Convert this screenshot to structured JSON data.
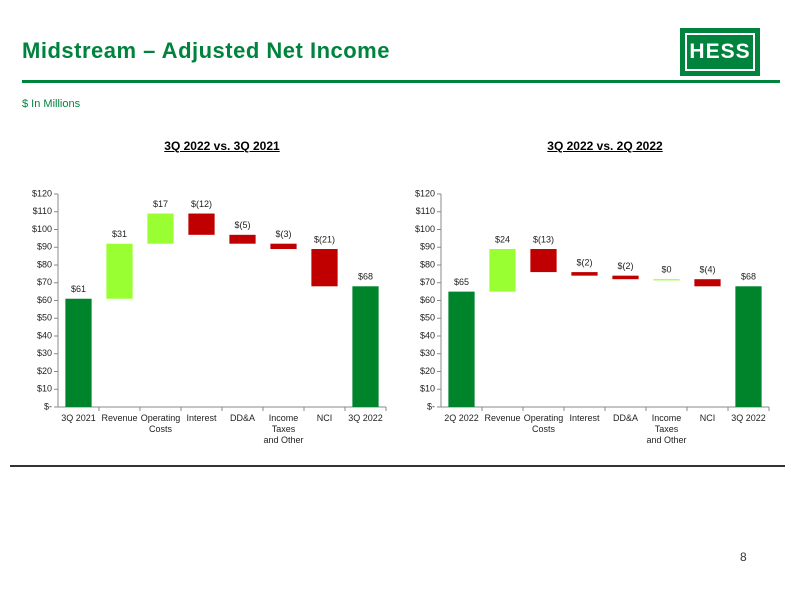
{
  "header": {
    "title": "Midstream – Adjusted Net Income",
    "subtitle": "$ In Millions",
    "logo": "HESS",
    "page_number": "8"
  },
  "chart_data": [
    {
      "type": "waterfall",
      "title": "3Q 2022 vs. 3Q 2021",
      "categories": [
        "3Q 2021",
        "Revenue",
        "Operating Costs",
        "Interest",
        "DD&A",
        "Income Taxes and Other",
        "NCI",
        "3Q 2022"
      ],
      "values": [
        61,
        31,
        17,
        -12,
        -5,
        -3,
        -21,
        68
      ],
      "value_labels": [
        "$61",
        "$31",
        "$17",
        "$(12)",
        "$(5)",
        "$(3)",
        "$(21)",
        "$68"
      ],
      "measure": [
        "total",
        "relative",
        "relative",
        "relative",
        "relative",
        "relative",
        "relative",
        "total"
      ],
      "colors": {
        "total": "#00842b",
        "increase": "#99ff33",
        "decrease": "#c00000"
      },
      "ylim": [
        0,
        120
      ],
      "yticks": [
        {
          "value": 0,
          "label": "$-"
        },
        {
          "value": 10,
          "label": "$10"
        },
        {
          "value": 20,
          "label": "$20"
        },
        {
          "value": 30,
          "label": "$30"
        },
        {
          "value": 40,
          "label": "$40"
        },
        {
          "value": 50,
          "label": "$50"
        },
        {
          "value": 60,
          "label": "$60"
        },
        {
          "value": 70,
          "label": "$70"
        },
        {
          "value": 80,
          "label": "$80"
        },
        {
          "value": 90,
          "label": "$90"
        },
        {
          "value": 100,
          "label": "$100"
        },
        {
          "value": 110,
          "label": "$110"
        },
        {
          "value": 120,
          "label": "$120"
        }
      ]
    },
    {
      "type": "waterfall",
      "title": "3Q 2022 vs. 2Q 2022",
      "categories": [
        "2Q 2022",
        "Revenue",
        "Operating Costs",
        "Interest",
        "DD&A",
        "Income Taxes and Other",
        "NCI",
        "3Q 2022"
      ],
      "values": [
        65,
        24,
        -13,
        -2,
        -2,
        0,
        -4,
        68
      ],
      "value_labels": [
        "$65",
        "$24",
        "$(13)",
        "$(2)",
        "$(2)",
        "$0",
        "$(4)",
        "$68"
      ],
      "measure": [
        "total",
        "relative",
        "relative",
        "relative",
        "relative",
        "relative",
        "relative",
        "total"
      ],
      "colors": {
        "total": "#00842b",
        "increase": "#99ff33",
        "decrease": "#c00000"
      },
      "ylim": [
        0,
        120
      ],
      "yticks": [
        {
          "value": 0,
          "label": "$-"
        },
        {
          "value": 10,
          "label": "$10"
        },
        {
          "value": 20,
          "label": "$20"
        },
        {
          "value": 30,
          "label": "$30"
        },
        {
          "value": 40,
          "label": "$40"
        },
        {
          "value": 50,
          "label": "$50"
        },
        {
          "value": 60,
          "label": "$60"
        },
        {
          "value": 70,
          "label": "$70"
        },
        {
          "value": 80,
          "label": "$80"
        },
        {
          "value": 90,
          "label": "$90"
        },
        {
          "value": 100,
          "label": "$100"
        },
        {
          "value": 110,
          "label": "$110"
        },
        {
          "value": 120,
          "label": "$120"
        }
      ]
    }
  ]
}
